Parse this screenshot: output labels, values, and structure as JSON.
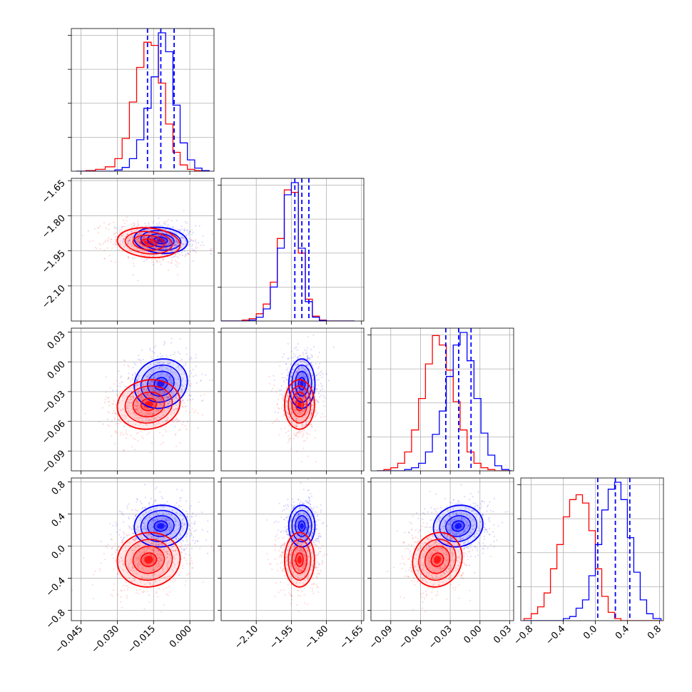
{
  "chart_data": {
    "type": "corner",
    "colors": {
      "series_a": "#0000ff",
      "series_b": "#ff0000",
      "grid": "#b0b0b0",
      "axis": "#000000"
    },
    "grid": true,
    "legend": "none",
    "params": [
      {
        "range": [
          -0.049,
          0.01
        ],
        "ticks": [
          -0.045,
          -0.03,
          -0.015,
          0.0
        ],
        "tick_labels": [
          "−0.045",
          "−0.030",
          "−0.015",
          "0.000"
        ]
      },
      {
        "range": [
          -2.25,
          -1.64
        ],
        "ticks": [
          -2.1,
          -1.95,
          -1.8,
          -1.65
        ],
        "tick_labels": [
          "−2.10",
          "−1.95",
          "−1.80",
          "−1.65"
        ]
      },
      {
        "range": [
          -0.11,
          0.034
        ],
        "ticks": [
          -0.09,
          -0.06,
          -0.03,
          0.0,
          0.03
        ],
        "tick_labels": [
          "−0.09",
          "−0.06",
          "−0.03",
          "0.00",
          "0.03"
        ]
      },
      {
        "range": [
          -0.93,
          0.85
        ],
        "ticks": [
          -0.8,
          -0.4,
          0.0,
          0.4,
          0.8
        ],
        "tick_labels": [
          "−0.8",
          "−0.4",
          "0.0",
          "0.4",
          "0.8"
        ]
      }
    ],
    "series": [
      {
        "color": "#0000ff",
        "mean": [
          -0.012,
          -1.905,
          -0.022,
          0.25
        ],
        "std": [
          0.0055,
          0.028,
          0.0125,
          0.13
        ],
        "quantiles_shown": true
      },
      {
        "color": "#ff0000",
        "mean": [
          -0.017,
          -1.915,
          -0.043,
          -0.17
        ],
        "std": [
          0.0065,
          0.032,
          0.0125,
          0.17
        ],
        "quantiles_shown": false
      }
    ],
    "quantile_lines": [
      {
        "param": 0,
        "values": [
          -0.0175,
          -0.012,
          -0.0065
        ]
      },
      {
        "param": 1,
        "values": [
          -1.935,
          -1.905,
          -1.875
        ]
      },
      {
        "param": 2,
        "values": [
          -0.0345,
          -0.0215,
          -0.009
        ]
      },
      {
        "param": 3,
        "values": [
          0.03,
          0.25,
          0.43
        ]
      }
    ],
    "histograms": [
      {
        "param": 0,
        "bin_edges": [
          -0.047,
          -0.043,
          -0.039,
          -0.035,
          -0.031,
          -0.028,
          -0.025,
          -0.022,
          -0.019,
          -0.016,
          -0.013,
          -0.01,
          -0.007,
          -0.004,
          -0.001,
          0.002,
          0.005,
          0.008
        ],
        "series_a": [
          0,
          0,
          0,
          0,
          2,
          6,
          20,
          50,
          100,
          150,
          220,
          190,
          105,
          45,
          18,
          5,
          1
        ],
        "series_b": [
          0,
          1,
          3,
          7,
          20,
          52,
          110,
          165,
          205,
          200,
          140,
          75,
          30,
          10,
          3,
          1,
          0
        ]
      },
      {
        "param": 1,
        "bin_edges": [
          -2.25,
          -2.22,
          -2.19,
          -2.16,
          -2.13,
          -2.1,
          -2.07,
          -2.04,
          -2.01,
          -1.98,
          -1.95,
          -1.92,
          -1.89,
          -1.86,
          -1.83,
          -1.8,
          -1.77,
          -1.74,
          -1.71,
          -1.68
        ],
        "series_a": [
          0,
          0,
          0,
          0,
          2,
          8,
          25,
          70,
          150,
          260,
          285,
          150,
          40,
          8,
          1,
          0,
          0,
          0,
          0
        ],
        "series_b": [
          0,
          0,
          0,
          2,
          5,
          15,
          35,
          80,
          170,
          270,
          265,
          140,
          45,
          10,
          2,
          0,
          0,
          0,
          0
        ]
      },
      {
        "param": 2,
        "bin_edges": [
          -0.104,
          -0.097,
          -0.09,
          -0.083,
          -0.076,
          -0.069,
          -0.062,
          -0.055,
          -0.048,
          -0.041,
          -0.034,
          -0.027,
          -0.02,
          -0.013,
          -0.006,
          0.001,
          0.008,
          0.015,
          0.022,
          0.029,
          0.032
        ],
        "series_a": [
          0,
          0,
          0,
          0,
          2,
          5,
          12,
          30,
          58,
          95,
          150,
          200,
          220,
          175,
          115,
          60,
          25,
          8,
          2,
          0
        ],
        "series_b": [
          0,
          2,
          5,
          12,
          30,
          65,
          115,
          170,
          215,
          200,
          160,
          110,
          65,
          30,
          12,
          5,
          2,
          0,
          0,
          0
        ]
      },
      {
        "param": 3,
        "bin_edges": [
          -0.89,
          -0.8,
          -0.72,
          -0.64,
          -0.56,
          -0.48,
          -0.4,
          -0.32,
          -0.24,
          -0.16,
          -0.08,
          0.0,
          0.08,
          0.16,
          0.24,
          0.32,
          0.4,
          0.48,
          0.56,
          0.64,
          0.72,
          0.82
        ],
        "series_a": [
          0,
          0,
          0,
          0,
          0,
          0,
          3,
          6,
          18,
          30,
          65,
          110,
          160,
          190,
          200,
          175,
          120,
          70,
          30,
          10,
          3
        ],
        "series_b": [
          3,
          10,
          20,
          40,
          75,
          110,
          150,
          175,
          182,
          170,
          130,
          75,
          35,
          12,
          3,
          0,
          0,
          0,
          0,
          0,
          0
        ]
      }
    ]
  }
}
